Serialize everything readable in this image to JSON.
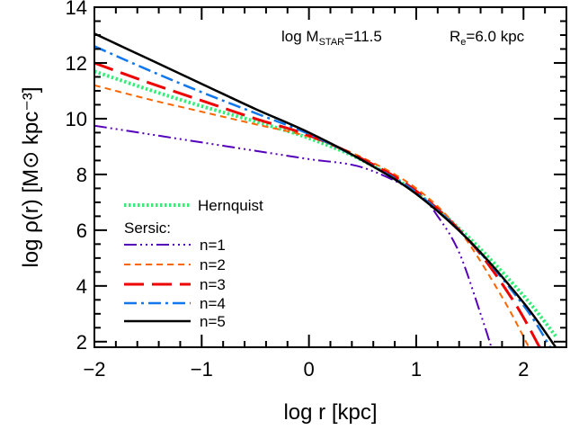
{
  "chart_data": {
    "type": "line",
    "xlabel": "log r [kpc]",
    "ylabel": "log ρ(r) [M⊙ kpc⁻³]",
    "xlim": [
      -2,
      2.4
    ],
    "ylim": [
      1.8,
      14
    ],
    "x_ticks": [
      "−2",
      "−1",
      "0",
      "1",
      "2"
    ],
    "y_ticks": [
      "2",
      "4",
      "6",
      "8",
      "10",
      "12",
      "14"
    ],
    "x_tick_values": [
      -2,
      -1,
      0,
      1,
      2
    ],
    "y_tick_values": [
      2,
      4,
      6,
      8,
      10,
      12,
      14
    ],
    "annotations": {
      "mass": "log M",
      "mass_sub": "STAR",
      "mass_value": "=11.5",
      "re": "R",
      "re_sub": "e",
      "re_value": "=6.0 kpc"
    },
    "legend_title": "Sersic:",
    "series": [
      {
        "name": "Hernquist",
        "color": "#33ee77",
        "dash": "dotted-thick",
        "x": [
          -2,
          -1.5,
          -1,
          -0.5,
          0,
          0.5,
          1,
          1.5,
          2,
          2.3
        ],
        "y": [
          11.7,
          11.05,
          10.45,
          9.9,
          9.3,
          8.5,
          7.35,
          5.7,
          3.65,
          2.2
        ]
      },
      {
        "name": "n=1",
        "color": "#5500bb",
        "dash": "dash-dot-dot",
        "x": [
          -2,
          -1.5,
          -1,
          -0.5,
          0,
          0.5,
          1,
          1.2,
          1.4,
          1.6,
          1.7
        ],
        "y": [
          9.75,
          9.45,
          9.15,
          8.85,
          8.55,
          8.25,
          7.35,
          6.5,
          5.2,
          3.0,
          1.8
        ]
      },
      {
        "name": "n=2",
        "color": "#ff6600",
        "dash": "short-dash",
        "x": [
          -2,
          -1.5,
          -1,
          -0.5,
          0,
          0.5,
          1,
          1.4,
          1.8,
          2.05
        ],
        "y": [
          11.2,
          10.7,
          10.25,
          9.8,
          9.35,
          8.6,
          7.5,
          6.0,
          3.6,
          1.8
        ]
      },
      {
        "name": "n=3",
        "color": "#ee0000",
        "dash": "long-dash",
        "x": [
          -2,
          -1.5,
          -1,
          -0.5,
          0,
          0.5,
          1,
          1.5,
          1.9,
          2.15
        ],
        "y": [
          12.0,
          11.3,
          10.65,
          10.0,
          9.4,
          8.55,
          7.4,
          5.6,
          3.5,
          1.8
        ]
      },
      {
        "name": "n=4",
        "color": "#1177ee",
        "dash": "dash-dot",
        "x": [
          -2,
          -1.5,
          -1,
          -0.5,
          0,
          0.5,
          1,
          1.5,
          2,
          2.25
        ],
        "y": [
          12.6,
          11.75,
          10.95,
          10.2,
          9.45,
          8.5,
          7.35,
          5.6,
          3.3,
          1.8
        ]
      },
      {
        "name": "n=5",
        "color": "#000000",
        "dash": "solid",
        "x": [
          -2,
          -1.5,
          -1,
          -0.5,
          0,
          0.5,
          1,
          1.5,
          2,
          2.3
        ],
        "y": [
          13.05,
          12.15,
          11.25,
          10.35,
          9.5,
          8.5,
          7.3,
          5.6,
          3.4,
          1.8
        ]
      }
    ]
  }
}
